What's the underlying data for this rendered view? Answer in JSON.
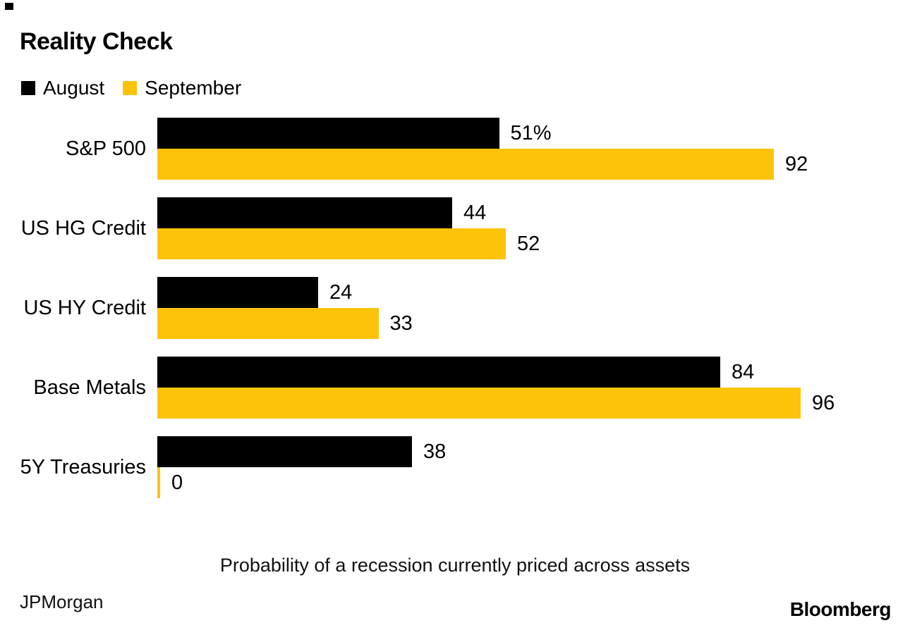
{
  "title": "Reality Check",
  "legend": {
    "august_label": "August",
    "september_label": "September"
  },
  "colors": {
    "august": "#000000",
    "september": "#fdc30b",
    "background": "#ffffff",
    "text": "#000000"
  },
  "caption": "Probability of a recession currently priced across assets",
  "source": "JPMorgan",
  "brand": "Bloomberg",
  "chart_data": {
    "type": "bar",
    "orientation": "horizontal",
    "title": "Reality Check",
    "xlabel": "Probability of a recession currently priced across assets",
    "categories": [
      "S&P 500",
      "US HG Credit",
      "US HY Credit",
      "Base Metals",
      "5Y Treasuries"
    ],
    "series": [
      {
        "name": "August",
        "color": "#000000",
        "values": [
          51,
          44,
          24,
          84,
          38
        ],
        "labels": [
          "51%",
          "44",
          "24",
          "84",
          "38"
        ]
      },
      {
        "name": "September",
        "color": "#fdc30b",
        "values": [
          92,
          52,
          33,
          96,
          0
        ],
        "labels": [
          "92",
          "52",
          "33",
          "96",
          "0"
        ]
      }
    ],
    "xlim": [
      0,
      100
    ],
    "grid": false,
    "legend_position": "top-left",
    "value_labels_shown": true,
    "source": "JPMorgan",
    "brand": "Bloomberg"
  }
}
